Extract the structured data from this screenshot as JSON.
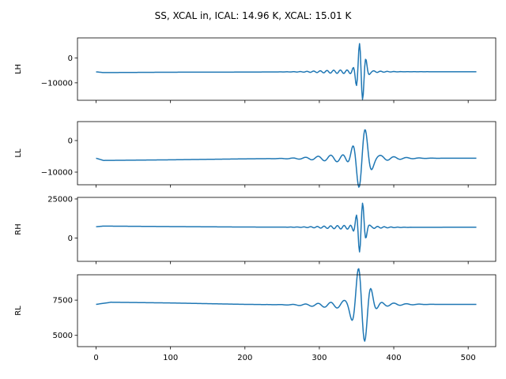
{
  "chart_data": {
    "type": "line",
    "title": "SS, XCAL in, ICAL: 14.96 K, XCAL: 15.01 K",
    "shared_x": {
      "lim": [
        -25,
        537
      ],
      "ticks": [
        0,
        100,
        200,
        300,
        400,
        500
      ],
      "tick_labels": [
        "0",
        "100",
        "200",
        "300",
        "400",
        "500"
      ],
      "n_samples": 512
    },
    "series_color": "#1f77b4",
    "panels": [
      {
        "name": "LH",
        "ylabel": "LH",
        "ylim": [
          -17000,
          8000
        ],
        "yticks": [
          0,
          -10000
        ],
        "ytick_labels": [
          "0",
          "−10000"
        ],
        "baseline": [
          [
            0,
            -5600
          ],
          [
            10,
            -5900
          ],
          [
            100,
            -5750
          ],
          [
            200,
            -5700
          ],
          [
            300,
            -5550
          ],
          [
            400,
            -5550
          ],
          [
            511,
            -5550
          ]
        ],
        "ripple": {
          "amp": 700,
          "center": 335,
          "width": 45,
          "period": 9
        },
        "burst": {
          "center": 356,
          "amp": 12000,
          "period": 9,
          "width": 7,
          "sign": -1
        }
      },
      {
        "name": "LL",
        "ylabel": "LL",
        "ylim": [
          -14000,
          6000
        ],
        "yticks": [
          0,
          -10000
        ],
        "ytick_labels": [
          "0",
          "−10000"
        ],
        "baseline": [
          [
            0,
            -5600
          ],
          [
            10,
            -6300
          ],
          [
            100,
            -6100
          ],
          [
            200,
            -5800
          ],
          [
            300,
            -5600
          ],
          [
            400,
            -5600
          ],
          [
            511,
            -5600
          ]
        ],
        "ripple": {
          "amp": 1300,
          "center": 345,
          "width": 55,
          "period": 17
        },
        "burst": {
          "center": 357,
          "amp": 10500,
          "period": 18,
          "width": 13,
          "sign": 1
        }
      },
      {
        "name": "RH",
        "ylabel": "RH",
        "ylim": [
          -15000,
          26000
        ],
        "yticks": [
          25000,
          0
        ],
        "ytick_labels": [
          "25000",
          "0"
        ],
        "baseline": [
          [
            0,
            7200
          ],
          [
            10,
            7600
          ],
          [
            100,
            7300
          ],
          [
            200,
            7000
          ],
          [
            300,
            6900
          ],
          [
            400,
            6800
          ],
          [
            511,
            6900
          ]
        ],
        "ripple": {
          "amp": 1200,
          "center": 340,
          "width": 45,
          "period": 9
        },
        "burst": {
          "center": 356,
          "amp": 17000,
          "period": 9,
          "width": 7,
          "sign": 1
        }
      },
      {
        "name": "RL",
        "ylabel": "RL",
        "ylim": [
          4200,
          9300
        ],
        "yticks": [
          7500,
          5000
        ],
        "ytick_labels": [
          "7500",
          "5000"
        ],
        "baseline": [
          [
            0,
            7200
          ],
          [
            20,
            7350
          ],
          [
            100,
            7300
          ],
          [
            200,
            7200
          ],
          [
            300,
            7150
          ],
          [
            400,
            7200
          ],
          [
            511,
            7200
          ]
        ],
        "ripple": {
          "amp": 250,
          "center": 345,
          "width": 55,
          "period": 17
        },
        "burst": {
          "center": 357,
          "amp": 2800,
          "period": 18,
          "width": 13,
          "sign": -1
        }
      }
    ]
  }
}
